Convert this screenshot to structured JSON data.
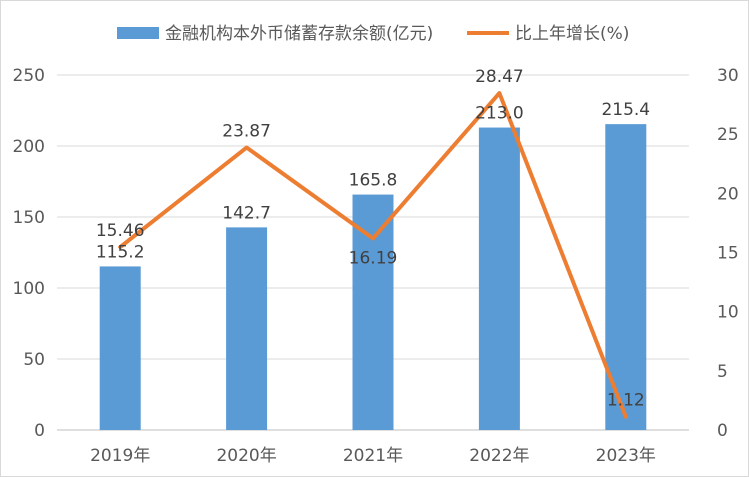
{
  "chart_data": {
    "type": "bar+line",
    "categories": [
      "2019年",
      "2020年",
      "2021年",
      "2022年",
      "2023年"
    ],
    "series": [
      {
        "name": "金融机构本外币储蓄存款余额(亿元)",
        "type": "bar",
        "axis": "left",
        "color": "#5b9bd5",
        "values": [
          115.2,
          142.7,
          165.8,
          213.0,
          215.4
        ],
        "labels": [
          "115.2",
          "142.7",
          "165.8",
          "213.0",
          "215.4"
        ]
      },
      {
        "name": "比上年增长(%)",
        "type": "line",
        "axis": "right",
        "color": "#ed7d31",
        "values": [
          15.46,
          23.87,
          16.19,
          28.47,
          1.12
        ],
        "labels": [
          "15.46",
          "23.87",
          "16.19",
          "28.47",
          "1.12"
        ]
      }
    ],
    "y_left": {
      "min": 0,
      "max": 250,
      "ticks": [
        "0",
        "50",
        "100",
        "150",
        "200",
        "250"
      ]
    },
    "y_right": {
      "min": 0,
      "max": 30,
      "ticks": [
        "0",
        "5",
        "10",
        "15",
        "20",
        "25",
        "30"
      ]
    },
    "legend_position": "top",
    "grid": true
  }
}
